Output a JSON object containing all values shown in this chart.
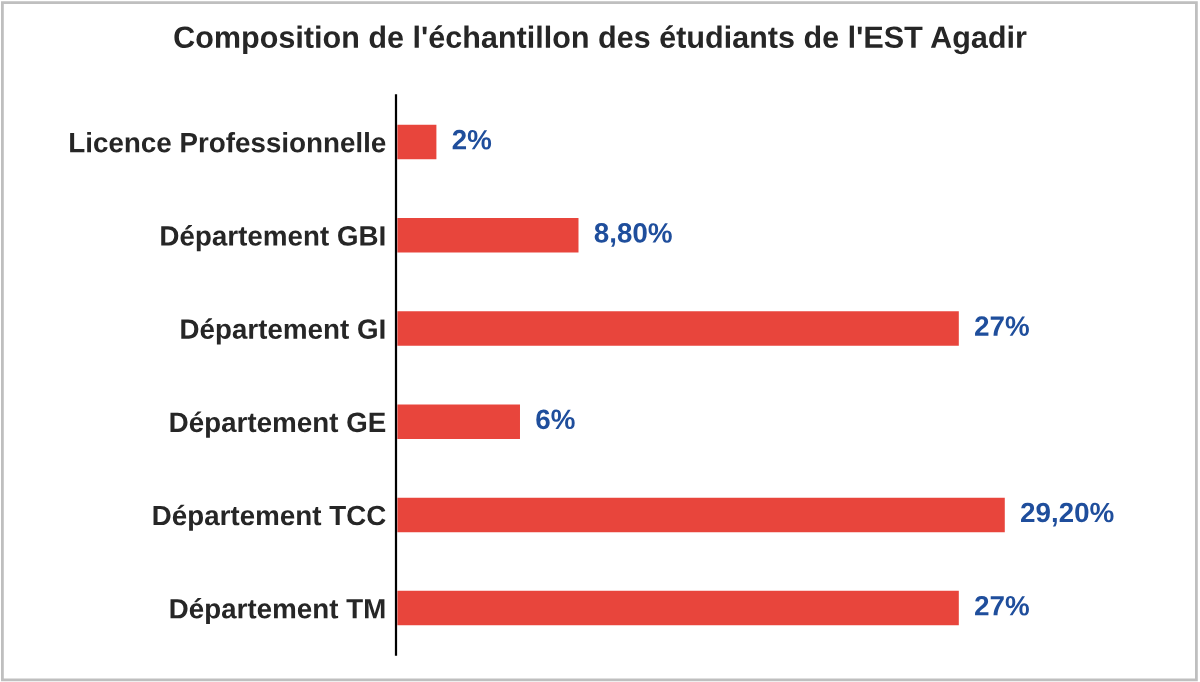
{
  "chart_data": {
    "type": "bar",
    "orientation": "horizontal",
    "title": "Composition de l'échantillon des étudiants de l'EST Agadir",
    "categories": [
      "Licence Professionnelle",
      "Département GBI",
      "Département GI",
      "Département GE",
      "Département TCC",
      "Département TM"
    ],
    "values": [
      2,
      8.8,
      27,
      6,
      29.2,
      27
    ],
    "value_labels": [
      "2%",
      "8,80%",
      "27%",
      "6%",
      "29,20%",
      "27%"
    ],
    "color": "#e8453c",
    "grid": false,
    "legend": false
  }
}
